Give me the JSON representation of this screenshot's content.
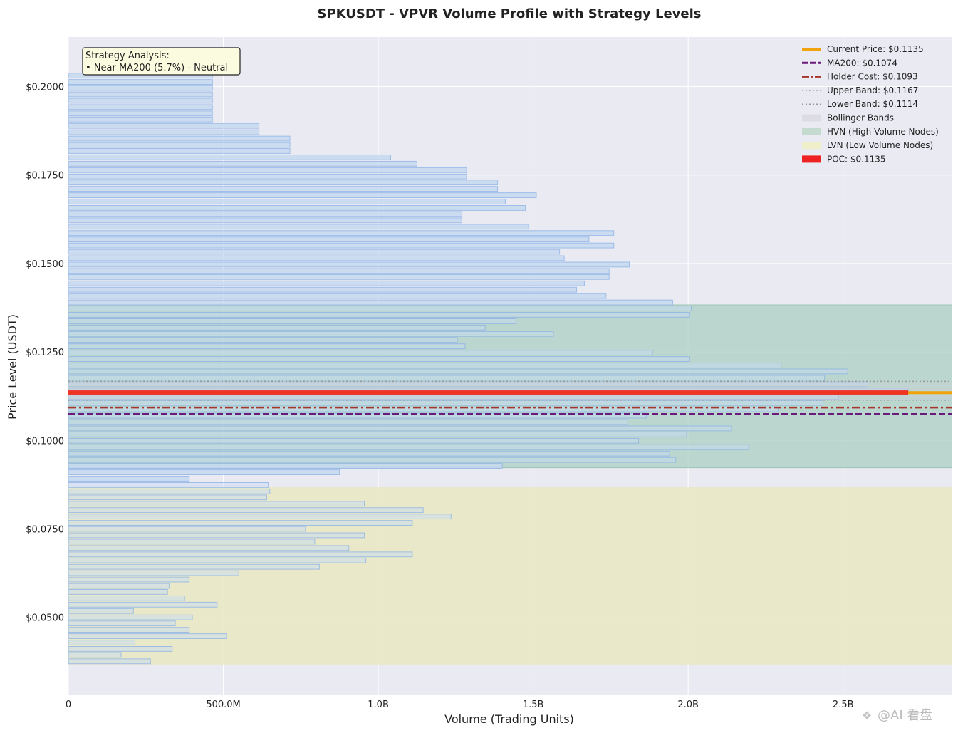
{
  "chart_data": {
    "type": "bar",
    "orientation": "horizontal",
    "title": "SPKUSDT - VPVR Volume Profile with Strategy Levels",
    "xlabel": "Volume (Trading Units)",
    "ylabel": "Price Level (USDT)",
    "xlim": [
      0,
      2850000000
    ],
    "ylim": [
      0.028,
      0.214
    ],
    "x_ticks": [
      {
        "value": 0,
        "label": "0"
      },
      {
        "value": 500000000,
        "label": "500.0M"
      },
      {
        "value": 1000000000,
        "label": "1.0B"
      },
      {
        "value": 1500000000,
        "label": "1.5B"
      },
      {
        "value": 2000000000,
        "label": "2.0B"
      },
      {
        "value": 2500000000,
        "label": "2.5B"
      }
    ],
    "y_ticks": [
      {
        "value": 0.05,
        "label": "$0.0500"
      },
      {
        "value": 0.075,
        "label": "$0.0750"
      },
      {
        "value": 0.1,
        "label": "$0.1000"
      },
      {
        "value": 0.125,
        "label": "$0.1250"
      },
      {
        "value": 0.15,
        "label": "$0.1500"
      },
      {
        "value": 0.175,
        "label": "$0.1750"
      },
      {
        "value": 0.2,
        "label": "$0.2000"
      }
    ],
    "grid": true,
    "legend_position": "top-right",
    "bin_height": 0.00168,
    "bars": [
      {
        "price": 0.0376,
        "volume": 265000000,
        "zone": "lvn"
      },
      {
        "price": 0.0394,
        "volume": 170000000,
        "zone": "lvn"
      },
      {
        "price": 0.0411,
        "volume": 335000000,
        "zone": "lvn"
      },
      {
        "price": 0.0429,
        "volume": 215000000,
        "zone": "lvn"
      },
      {
        "price": 0.0447,
        "volume": 510000000,
        "zone": "lvn"
      },
      {
        "price": 0.0465,
        "volume": 390000000,
        "zone": "lvn"
      },
      {
        "price": 0.0483,
        "volume": 345000000,
        "zone": "lvn"
      },
      {
        "price": 0.05,
        "volume": 400000000,
        "zone": "lvn"
      },
      {
        "price": 0.0518,
        "volume": 210000000,
        "zone": "lvn"
      },
      {
        "price": 0.0536,
        "volume": 480000000,
        "zone": "lvn"
      },
      {
        "price": 0.0554,
        "volume": 375000000,
        "zone": "lvn"
      },
      {
        "price": 0.0572,
        "volume": 320000000,
        "zone": "lvn"
      },
      {
        "price": 0.0589,
        "volume": 325000000,
        "zone": "lvn"
      },
      {
        "price": 0.0607,
        "volume": 390000000,
        "zone": "lvn"
      },
      {
        "price": 0.0625,
        "volume": 550000000,
        "zone": "lvn"
      },
      {
        "price": 0.0643,
        "volume": 810000000,
        "zone": "lvn"
      },
      {
        "price": 0.0661,
        "volume": 960000000,
        "zone": "lvn"
      },
      {
        "price": 0.0678,
        "volume": 1110000000,
        "zone": "lvn"
      },
      {
        "price": 0.0696,
        "volume": 905000000,
        "zone": "lvn"
      },
      {
        "price": 0.0714,
        "volume": 795000000,
        "zone": "lvn"
      },
      {
        "price": 0.0732,
        "volume": 955000000,
        "zone": "lvn"
      },
      {
        "price": 0.075,
        "volume": 765000000,
        "zone": "lvn"
      },
      {
        "price": 0.0767,
        "volume": 1110000000,
        "zone": "lvn"
      },
      {
        "price": 0.0785,
        "volume": 1235000000,
        "zone": "lvn"
      },
      {
        "price": 0.0803,
        "volume": 1145000000,
        "zone": "lvn"
      },
      {
        "price": 0.0821,
        "volume": 955000000,
        "zone": "lvn"
      },
      {
        "price": 0.0839,
        "volume": 640000000,
        "zone": "lvn"
      },
      {
        "price": 0.0856,
        "volume": 650000000,
        "zone": "lvn"
      },
      {
        "price": 0.0874,
        "volume": 645000000,
        "zone": "lvn"
      },
      {
        "price": 0.0892,
        "volume": 390000000,
        "zone": "normal"
      },
      {
        "price": 0.091,
        "volume": 875000000,
        "zone": "normal"
      },
      {
        "price": 0.0928,
        "volume": 1400000000,
        "zone": "normal"
      },
      {
        "price": 0.0945,
        "volume": 1960000000,
        "zone": "hvn"
      },
      {
        "price": 0.0963,
        "volume": 1940000000,
        "zone": "hvn"
      },
      {
        "price": 0.0981,
        "volume": 2195000000,
        "zone": "hvn"
      },
      {
        "price": 0.0999,
        "volume": 1840000000,
        "zone": "hvn"
      },
      {
        "price": 0.1017,
        "volume": 1995000000,
        "zone": "hvn"
      },
      {
        "price": 0.1034,
        "volume": 2140000000,
        "zone": "hvn"
      },
      {
        "price": 0.1052,
        "volume": 1805000000,
        "zone": "hvn"
      },
      {
        "price": 0.107,
        "volume": 1865000000,
        "zone": "hvn"
      },
      {
        "price": 0.1088,
        "volume": 2290000000,
        "zone": "hvn"
      },
      {
        "price": 0.1106,
        "volume": 2435000000,
        "zone": "hvn"
      },
      {
        "price": 0.1123,
        "volume": 2485000000,
        "zone": "hvn"
      },
      {
        "price": 0.1141,
        "volume": 2710000000,
        "zone": "hvn"
      },
      {
        "price": 0.1159,
        "volume": 2580000000,
        "zone": "hvn"
      },
      {
        "price": 0.1177,
        "volume": 2440000000,
        "zone": "hvn"
      },
      {
        "price": 0.1195,
        "volume": 2515000000,
        "zone": "hvn"
      },
      {
        "price": 0.1212,
        "volume": 2300000000,
        "zone": "hvn"
      },
      {
        "price": 0.123,
        "volume": 2005000000,
        "zone": "hvn"
      },
      {
        "price": 0.1248,
        "volume": 1885000000,
        "zone": "hvn"
      },
      {
        "price": 0.1266,
        "volume": 1280000000,
        "zone": "hvn"
      },
      {
        "price": 0.1284,
        "volume": 1255000000,
        "zone": "hvn"
      },
      {
        "price": 0.1301,
        "volume": 1565000000,
        "zone": "hvn"
      },
      {
        "price": 0.1319,
        "volume": 1345000000,
        "zone": "hvn"
      },
      {
        "price": 0.1337,
        "volume": 1445000000,
        "zone": "hvn"
      },
      {
        "price": 0.1355,
        "volume": 2005000000,
        "zone": "hvn"
      },
      {
        "price": 0.1373,
        "volume": 2010000000,
        "zone": "hvn"
      },
      {
        "price": 0.139,
        "volume": 1950000000,
        "zone": "normal"
      },
      {
        "price": 0.1408,
        "volume": 1735000000,
        "zone": "normal"
      },
      {
        "price": 0.1426,
        "volume": 1640000000,
        "zone": "normal"
      },
      {
        "price": 0.1444,
        "volume": 1665000000,
        "zone": "normal"
      },
      {
        "price": 0.1462,
        "volume": 1745000000,
        "zone": "normal"
      },
      {
        "price": 0.1479,
        "volume": 1745000000,
        "zone": "normal"
      },
      {
        "price": 0.1497,
        "volume": 1810000000,
        "zone": "normal"
      },
      {
        "price": 0.1515,
        "volume": 1600000000,
        "zone": "normal"
      },
      {
        "price": 0.1533,
        "volume": 1585000000,
        "zone": "normal"
      },
      {
        "price": 0.1551,
        "volume": 1760000000,
        "zone": "normal"
      },
      {
        "price": 0.1568,
        "volume": 1680000000,
        "zone": "normal"
      },
      {
        "price": 0.1586,
        "volume": 1760000000,
        "zone": "normal"
      },
      {
        "price": 0.1604,
        "volume": 1485000000,
        "zone": "normal"
      },
      {
        "price": 0.1622,
        "volume": 1270000000,
        "zone": "normal"
      },
      {
        "price": 0.164,
        "volume": 1270000000,
        "zone": "normal"
      },
      {
        "price": 0.1657,
        "volume": 1475000000,
        "zone": "normal"
      },
      {
        "price": 0.1675,
        "volume": 1410000000,
        "zone": "normal"
      },
      {
        "price": 0.1693,
        "volume": 1510000000,
        "zone": "normal"
      },
      {
        "price": 0.1711,
        "volume": 1385000000,
        "zone": "normal"
      },
      {
        "price": 0.1729,
        "volume": 1385000000,
        "zone": "normal"
      },
      {
        "price": 0.1746,
        "volume": 1285000000,
        "zone": "normal"
      },
      {
        "price": 0.1764,
        "volume": 1285000000,
        "zone": "normal"
      },
      {
        "price": 0.1782,
        "volume": 1125000000,
        "zone": "normal"
      },
      {
        "price": 0.18,
        "volume": 1040000000,
        "zone": "normal"
      },
      {
        "price": 0.1818,
        "volume": 715000000,
        "zone": "normal"
      },
      {
        "price": 0.1835,
        "volume": 715000000,
        "zone": "normal"
      },
      {
        "price": 0.1853,
        "volume": 715000000,
        "zone": "normal"
      },
      {
        "price": 0.1871,
        "volume": 615000000,
        "zone": "normal"
      },
      {
        "price": 0.1889,
        "volume": 615000000,
        "zone": "normal"
      },
      {
        "price": 0.1907,
        "volume": 465000000,
        "zone": "normal"
      },
      {
        "price": 0.1924,
        "volume": 465000000,
        "zone": "normal"
      },
      {
        "price": 0.1942,
        "volume": 465000000,
        "zone": "normal"
      },
      {
        "price": 0.196,
        "volume": 465000000,
        "zone": "normal"
      },
      {
        "price": 0.1978,
        "volume": 465000000,
        "zone": "normal"
      },
      {
        "price": 0.1996,
        "volume": 465000000,
        "zone": "normal"
      },
      {
        "price": 0.2013,
        "volume": 465000000,
        "zone": "normal"
      },
      {
        "price": 0.2031,
        "volume": 465000000,
        "zone": "normal"
      }
    ],
    "zones": {
      "hvn": [
        0.0923,
        0.1383
      ],
      "lvn": [
        0.0367,
        0.0869
      ],
      "bollinger": [
        0.1114,
        0.1167
      ]
    },
    "levels": {
      "current_price": 0.1135,
      "ma200": 0.1074,
      "holder_cost": 0.1093,
      "upper_band": 0.1167,
      "lower_band": 0.1114,
      "poc": 0.1135,
      "poc_volume": 2710000000
    },
    "legend": [
      {
        "key": "current",
        "label": "Current Price: $0.1135"
      },
      {
        "key": "ma200",
        "label": "MA200: $0.1074"
      },
      {
        "key": "holder",
        "label": "Holder Cost: $0.1093"
      },
      {
        "key": "upper",
        "label": "Upper Band: $0.1167"
      },
      {
        "key": "lower",
        "label": "Lower Band: $0.1114"
      },
      {
        "key": "bollinger",
        "label": "Bollinger Bands"
      },
      {
        "key": "hvn",
        "label": "HVN (High Volume Nodes)"
      },
      {
        "key": "lvn",
        "label": "LVN (Low Volume Nodes)"
      },
      {
        "key": "poc",
        "label": "POC: $0.1135"
      }
    ],
    "annotation": {
      "line1": "Strategy Analysis:",
      "line2": "• Near MA200 (5.7%) - Neutral"
    },
    "colors": {
      "background": "#eaeaf2",
      "grid": "#ffffff",
      "bar_fill": "#c6d9f1",
      "bar_edge": "#8fb3e6",
      "hvn_fill": "#a9cfc1",
      "lvn_fill": "#e9e9c5",
      "bollinger_fill": "#d0d0d8",
      "current_price": "#f0a30a",
      "ma200": "#6a1a7a",
      "holder_cost": "#a5342a",
      "bands": "#999999",
      "poc": "#ee2222"
    }
  },
  "watermark": "@AI 看盘"
}
